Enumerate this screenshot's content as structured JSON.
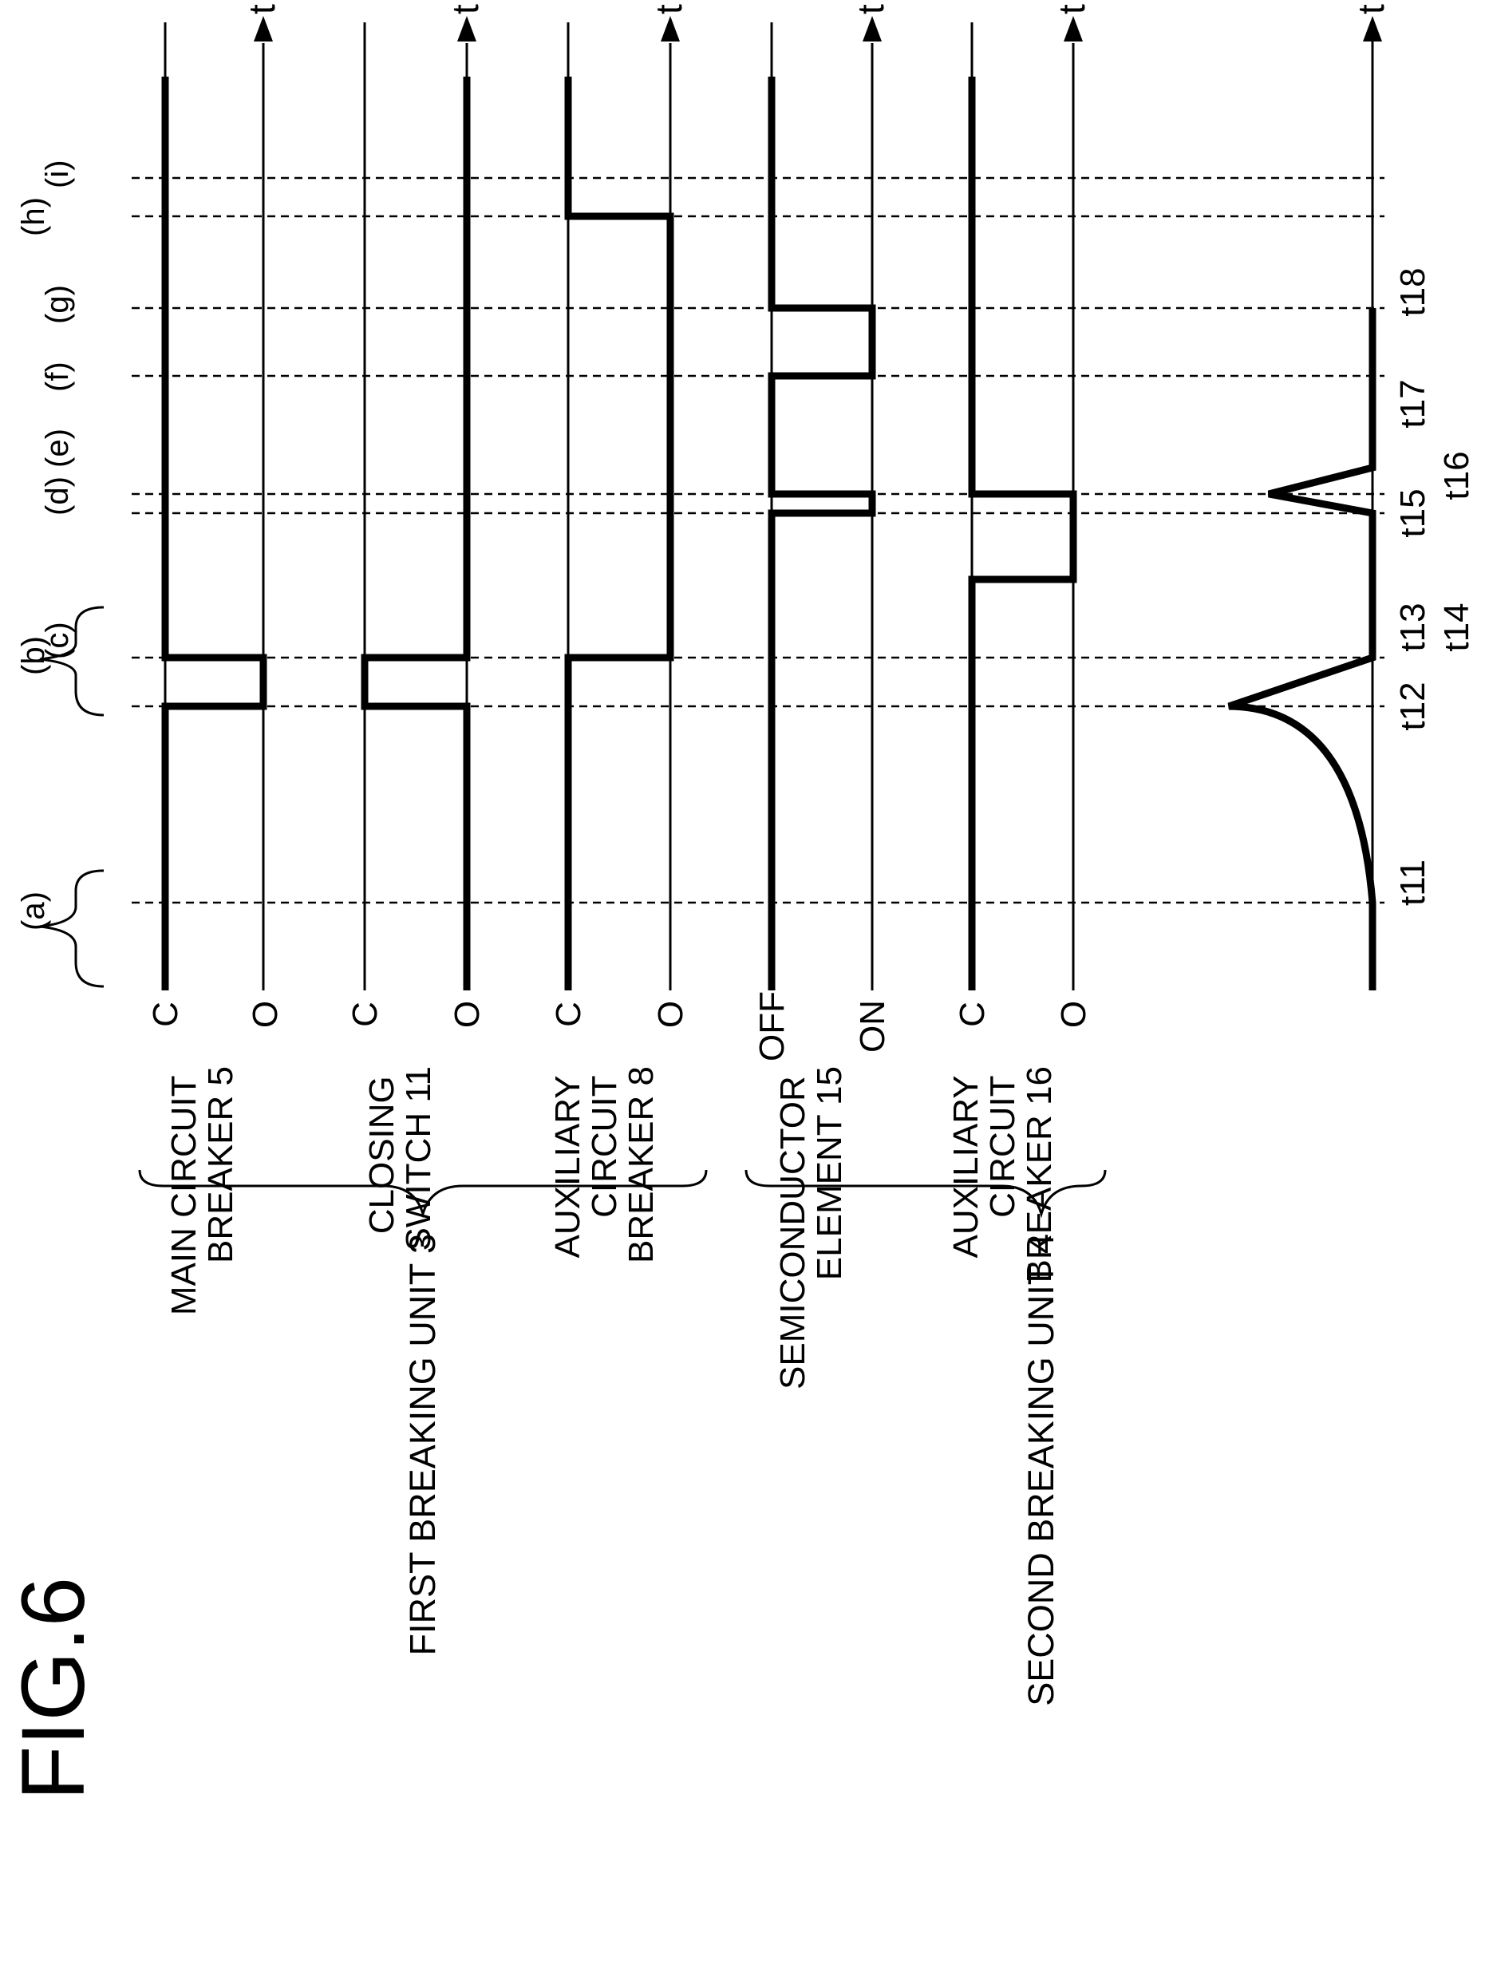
{
  "figure": {
    "title": "FIG.6",
    "time_axis_label": "t",
    "groups": [
      {
        "label": "FIRST BREAKING UNIT 3"
      },
      {
        "label": "SECOND BREAKING UNIT 4"
      }
    ],
    "rows": [
      {
        "name_lines": [
          "MAIN CIRCUIT",
          "BREAKER 5"
        ],
        "levels": [
          "C",
          "O"
        ],
        "sequence": [
          "C",
          "O",
          "C"
        ]
      },
      {
        "name_lines": [
          "CLOSING",
          "SWITCH 11"
        ],
        "levels": [
          "C",
          "O"
        ],
        "sequence": [
          "O",
          "C",
          "O"
        ]
      },
      {
        "name_lines": [
          "AUXILIARY",
          "CIRCUIT",
          "BREAKER 8"
        ],
        "levels": [
          "C",
          "O"
        ],
        "sequence": [
          "C",
          "O",
          "C"
        ]
      },
      {
        "name_lines": [
          "SEMICONDUCTOR",
          "ELEMENT 15"
        ],
        "levels": [
          "OFF",
          "ON"
        ],
        "sequence": [
          "OFF",
          "ON",
          "OFF",
          "ON",
          "OFF"
        ]
      },
      {
        "name_lines": [
          "AUXILIARY",
          "CIRCUIT",
          "BREAKER 16"
        ],
        "levels": [
          "C",
          "O"
        ],
        "sequence": [
          "C",
          "O",
          "C"
        ]
      }
    ],
    "events": [
      "(a)",
      "(b)",
      "(c)",
      "(d)",
      "(e)",
      "(f)",
      "(g)",
      "(h)",
      "(i)"
    ],
    "time_ticks": [
      "t11",
      "t12",
      "t13",
      "t14",
      "t15",
      "t16",
      "t17",
      "t18"
    ]
  }
}
